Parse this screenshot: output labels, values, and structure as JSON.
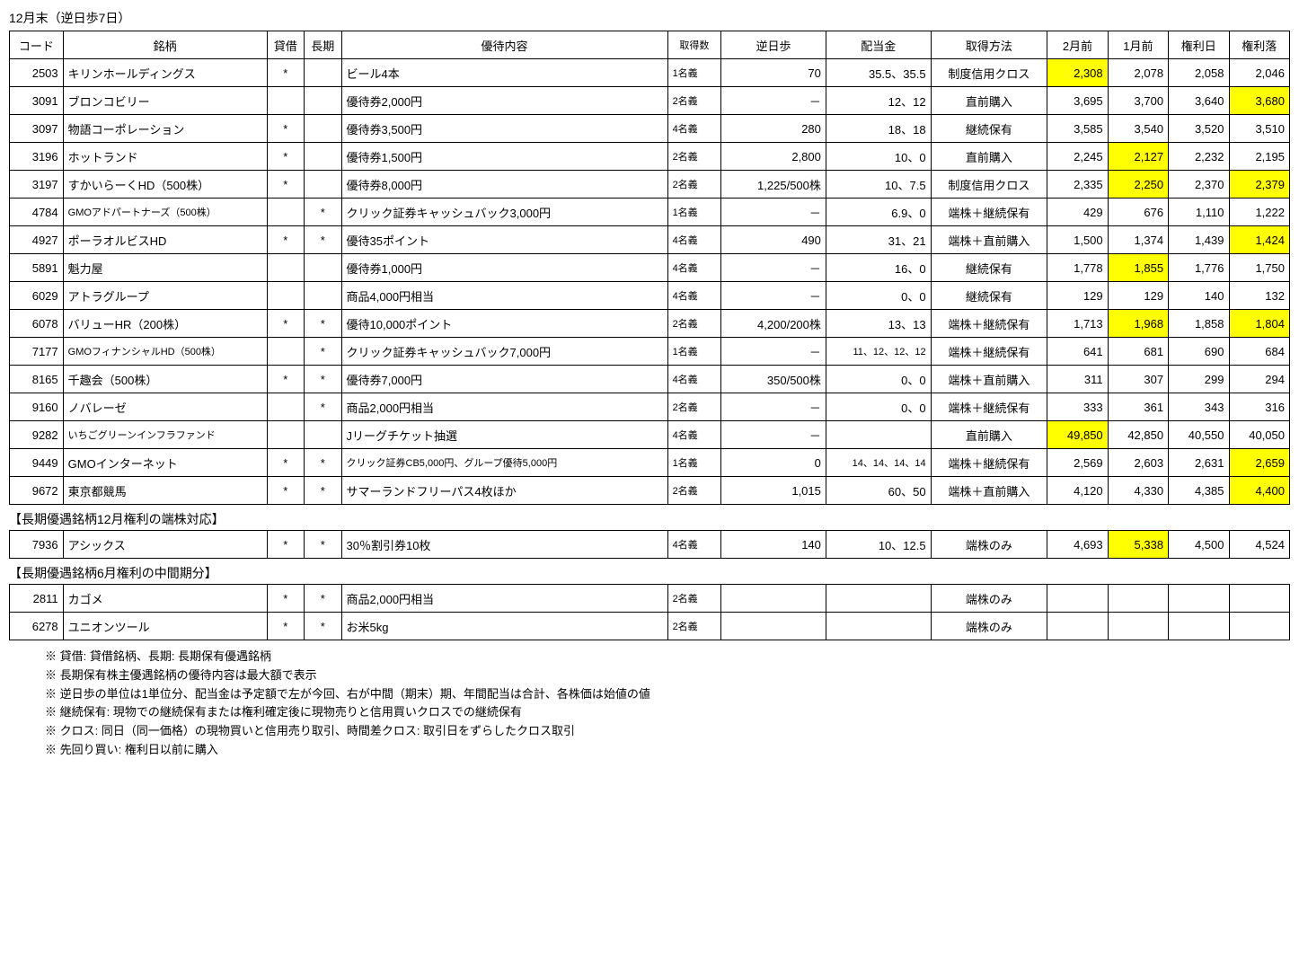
{
  "title": "12月末（逆日歩7日）",
  "sub1": "【長期優遇銘柄12月権利の端株対応】",
  "sub2": "【長期優遇銘柄6月権利の中間期分】",
  "columns": {
    "code": "コード",
    "name": "銘柄",
    "loan": "貸借",
    "long": "長期",
    "benefit": "優待内容",
    "qty": "取得数",
    "gyaku": "逆日歩",
    "div": "配当金",
    "method": "取得方法",
    "p2m": "2月前",
    "p1m": "1月前",
    "pd": "権利日",
    "pr": "権利落"
  },
  "rows": [
    {
      "code": "2503",
      "name": "キリンホールディングス",
      "loan": "*",
      "long": "",
      "benefit": "ビール4本",
      "qty": "1名義",
      "gyaku": "70",
      "div": "35.5、35.5",
      "method": "制度信用クロス",
      "p2m": "2,308",
      "p1m": "2,078",
      "pd": "2,058",
      "pr": "2,046",
      "hl": {
        "p2m": true
      }
    },
    {
      "code": "3091",
      "name": "ブロンコビリー",
      "loan": "",
      "long": "",
      "benefit": "優待券2,000円",
      "qty": "2名義",
      "gyaku": "－",
      "div": "12、12",
      "method": "直前購入",
      "p2m": "3,695",
      "p1m": "3,700",
      "pd": "3,640",
      "pr": "3,680",
      "hl": {
        "pr": true
      }
    },
    {
      "code": "3097",
      "name": "物語コーポレーション",
      "loan": "*",
      "long": "",
      "benefit": "優待券3,500円",
      "qty": "4名義",
      "gyaku": "280",
      "div": "18、18",
      "method": "継続保有",
      "p2m": "3,585",
      "p1m": "3,540",
      "pd": "3,520",
      "pr": "3,510"
    },
    {
      "code": "3196",
      "name": "ホットランド",
      "loan": "*",
      "long": "",
      "benefit": "優待券1,500円",
      "qty": "2名義",
      "gyaku": "2,800",
      "div": "10、0",
      "method": "直前購入",
      "p2m": "2,245",
      "p1m": "2,127",
      "pd": "2,232",
      "pr": "2,195",
      "hl": {
        "p1m": true
      }
    },
    {
      "code": "3197",
      "name": "すかいらーくHD（500株）",
      "loan": "*",
      "long": "",
      "benefit": "優待券8,000円",
      "qty": "2名義",
      "gyaku": "1,225/500株",
      "div": "10、7.5",
      "method": "制度信用クロス",
      "p2m": "2,335",
      "p1m": "2,250",
      "pd": "2,370",
      "pr": "2,379",
      "hl": {
        "p1m": true,
        "pr": true
      }
    },
    {
      "code": "4784",
      "name": "GMOアドパートナーズ（500株）",
      "nameSmall": true,
      "loan": "",
      "long": "*",
      "benefit": "クリック証券キャッシュバック3,000円",
      "qty": "1名義",
      "gyaku": "－",
      "div": "6.9、0",
      "method": "端株＋継続保有",
      "p2m": "429",
      "p1m": "676",
      "pd": "1,110",
      "pr": "1,222"
    },
    {
      "code": "4927",
      "name": "ポーラオルビスHD",
      "loan": "*",
      "long": "*",
      "benefit": "優待35ポイント",
      "qty": "4名義",
      "gyaku": "490",
      "div": "31、21",
      "method": "端株＋直前購入",
      "p2m": "1,500",
      "p1m": "1,374",
      "pd": "1,439",
      "pr": "1,424",
      "hl": {
        "pr": true
      }
    },
    {
      "code": "5891",
      "name": "魁力屋",
      "loan": "",
      "long": "",
      "benefit": "優待券1,000円",
      "qty": "4名義",
      "gyaku": "－",
      "div": "16、0",
      "method": "継続保有",
      "p2m": "1,778",
      "p1m": "1,855",
      "pd": "1,776",
      "pr": "1,750",
      "hl": {
        "p1m": true
      }
    },
    {
      "code": "6029",
      "name": "アトラグループ",
      "loan": "",
      "long": "",
      "benefit": "商品4,000円相当",
      "qty": "4名義",
      "gyaku": "－",
      "div": "0、0",
      "method": "継続保有",
      "p2m": "129",
      "p1m": "129",
      "pd": "140",
      "pr": "132"
    },
    {
      "code": "6078",
      "name": "バリューHR（200株）",
      "loan": "*",
      "long": "*",
      "benefit": "優待10,000ポイント",
      "qty": "2名義",
      "gyaku": "4,200/200株",
      "div": "13、13",
      "method": "端株＋継続保有",
      "p2m": "1,713",
      "p1m": "1,968",
      "pd": "1,858",
      "pr": "1,804",
      "hl": {
        "p1m": true,
        "pr": true
      }
    },
    {
      "code": "7177",
      "name": "GMOフィナンシャルHD（500株）",
      "nameSmall": true,
      "loan": "",
      "long": "*",
      "benefit": "クリック証券キャッシュバック7,000円",
      "qty": "1名義",
      "gyaku": "－",
      "div": "11、12、12、12",
      "divSmall": true,
      "method": "端株＋継続保有",
      "p2m": "641",
      "p1m": "681",
      "pd": "690",
      "pr": "684"
    },
    {
      "code": "8165",
      "name": "千趣会（500株）",
      "loan": "*",
      "long": "*",
      "benefit": "優待券7,000円",
      "qty": "4名義",
      "gyaku": "350/500株",
      "div": "0、0",
      "method": "端株＋直前購入",
      "p2m": "311",
      "p1m": "307",
      "pd": "299",
      "pr": "294"
    },
    {
      "code": "9160",
      "name": "ノバレーゼ",
      "loan": "",
      "long": "*",
      "benefit": "商品2,000円相当",
      "qty": "2名義",
      "gyaku": "－",
      "div": "0、0",
      "method": "端株＋継続保有",
      "p2m": "333",
      "p1m": "361",
      "pd": "343",
      "pr": "316"
    },
    {
      "code": "9282",
      "name": "いちごグリーンインフラファンド",
      "nameSmall": true,
      "loan": "",
      "long": "",
      "benefit": "Jリーグチケット抽選",
      "qty": "4名義",
      "gyaku": "－",
      "div": "",
      "method": "直前購入",
      "p2m": "49,850",
      "p1m": "42,850",
      "pd": "40,550",
      "pr": "40,050",
      "hl": {
        "p2m": true
      }
    },
    {
      "code": "9449",
      "name": "GMOインターネット",
      "loan": "*",
      "long": "*",
      "benefit": "クリック証券CB5,000円、グループ優待5,000円",
      "benefitSmall": true,
      "qty": "1名義",
      "gyaku": "0",
      "div": "14、14、14、14",
      "divSmall": true,
      "method": "端株＋継続保有",
      "p2m": "2,569",
      "p1m": "2,603",
      "pd": "2,631",
      "pr": "2,659",
      "hl": {
        "pr": true
      }
    },
    {
      "code": "9672",
      "name": "東京都競馬",
      "loan": "*",
      "long": "*",
      "benefit": "サマーランドフリーパス4枚ほか",
      "qty": "2名義",
      "gyaku": "1,015",
      "div": "60、50",
      "method": "端株＋直前購入",
      "p2m": "4,120",
      "p1m": "4,330",
      "pd": "4,385",
      "pr": "4,400",
      "hl": {
        "pr": true
      }
    }
  ],
  "rows2": [
    {
      "code": "7936",
      "name": "アシックス",
      "loan": "*",
      "long": "*",
      "benefit": "30％割引券10枚",
      "qty": "4名義",
      "gyaku": "140",
      "div": "10、12.5",
      "method": "端株のみ",
      "p2m": "4,693",
      "p1m": "5,338",
      "pd": "4,500",
      "pr": "4,524",
      "hl": {
        "p1m": true
      }
    }
  ],
  "rows3": [
    {
      "code": "2811",
      "name": "カゴメ",
      "loan": "*",
      "long": "*",
      "benefit": "商品2,000円相当",
      "qty": "2名義",
      "gyaku": "",
      "div": "",
      "method": "端株のみ",
      "p2m": "",
      "p1m": "",
      "pd": "",
      "pr": ""
    },
    {
      "code": "6278",
      "name": "ユニオンツール",
      "loan": "*",
      "long": "*",
      "benefit": "お米5kg",
      "qty": "2名義",
      "gyaku": "",
      "div": "",
      "method": "端株のみ",
      "p2m": "",
      "p1m": "",
      "pd": "",
      "pr": ""
    }
  ],
  "notes": [
    "※ 貸借: 貸借銘柄、長期: 長期保有優遇銘柄",
    "※ 長期保有株主優遇銘柄の優待内容は最大額で表示",
    "※ 逆日歩の単位は1単位分、配当金は予定額で左が今回、右が中間（期末）期、年間配当は合計、各株価は始値の値",
    "※ 継続保有: 現物での継続保有または権利確定後に現物売りと信用買いクロスでの継続保有",
    "※ クロス: 同日（同一価格）の現物買いと信用売り取引、時間差クロス: 取引日をずらしたクロス取引",
    "※ 先回り買い: 権利日以前に購入"
  ]
}
